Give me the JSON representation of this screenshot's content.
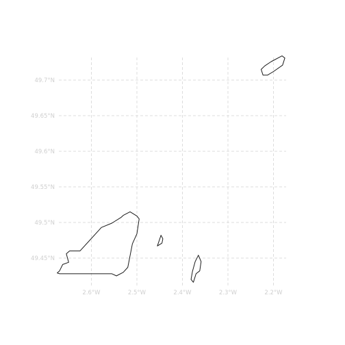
{
  "map": {
    "projection": "lon-lat",
    "extent": {
      "lon": [
        -2.705,
        -2.17
      ],
      "lat": [
        49.41,
        49.735
      ]
    },
    "grid_color": "#dcdcdc",
    "label_color": "#cfcfcf",
    "outline_color": "#1a1a1a",
    "lon_ticks": [
      {
        "value": -2.6,
        "label": "2.6°W"
      },
      {
        "value": -2.5,
        "label": "2.5°W"
      },
      {
        "value": -2.4,
        "label": "2.4°W"
      },
      {
        "value": -2.3,
        "label": "2.3°W"
      },
      {
        "value": -2.2,
        "label": "2.2°W"
      }
    ],
    "lat_ticks": [
      {
        "value": 49.7,
        "label": "49.7°N"
      },
      {
        "value": 49.65,
        "label": "49.65°N"
      },
      {
        "value": 49.6,
        "label": "49.6°N"
      },
      {
        "value": 49.55,
        "label": "49.55°N"
      },
      {
        "value": 49.5,
        "label": "49.5°N"
      },
      {
        "value": 49.45,
        "label": "49.45°N"
      }
    ],
    "islands": [
      {
        "id": "guernsey",
        "coords": [
          [
            -2.67,
            49.432
          ],
          [
            -2.675,
            49.429
          ],
          [
            -2.67,
            49.428
          ],
          [
            -2.555,
            49.428
          ],
          [
            -2.545,
            49.425
          ],
          [
            -2.53,
            49.43
          ],
          [
            -2.52,
            49.437
          ],
          [
            -2.51,
            49.47
          ],
          [
            -2.5,
            49.484
          ],
          [
            -2.495,
            49.505
          ],
          [
            -2.5,
            49.509
          ],
          [
            -2.515,
            49.515
          ],
          [
            -2.53,
            49.51
          ],
          [
            -2.535,
            49.507
          ],
          [
            -2.555,
            49.499
          ],
          [
            -2.578,
            49.493
          ],
          [
            -2.625,
            49.46
          ],
          [
            -2.648,
            49.46
          ],
          [
            -2.655,
            49.456
          ],
          [
            -2.65,
            49.444
          ],
          [
            -2.663,
            49.441
          ]
        ]
      },
      {
        "id": "herm",
        "coords": [
          [
            -2.455,
            49.467
          ],
          [
            -2.447,
            49.482
          ],
          [
            -2.443,
            49.477
          ],
          [
            -2.445,
            49.471
          ]
        ]
      },
      {
        "id": "sark",
        "coords": [
          [
            -2.376,
            49.416
          ],
          [
            -2.37,
            49.428
          ],
          [
            -2.362,
            49.432
          ],
          [
            -2.359,
            49.445
          ],
          [
            -2.365,
            49.454
          ],
          [
            -2.372,
            49.445
          ],
          [
            -2.378,
            49.431
          ],
          [
            -2.381,
            49.42
          ]
        ]
      },
      {
        "id": "alderney",
        "coords": [
          [
            -2.227,
            49.715
          ],
          [
            -2.223,
            49.707
          ],
          [
            -2.213,
            49.707
          ],
          [
            -2.2,
            49.712
          ],
          [
            -2.18,
            49.721
          ],
          [
            -2.175,
            49.731
          ],
          [
            -2.181,
            49.734
          ],
          [
            -2.205,
            49.726
          ],
          [
            -2.219,
            49.72
          ]
        ]
      }
    ]
  }
}
